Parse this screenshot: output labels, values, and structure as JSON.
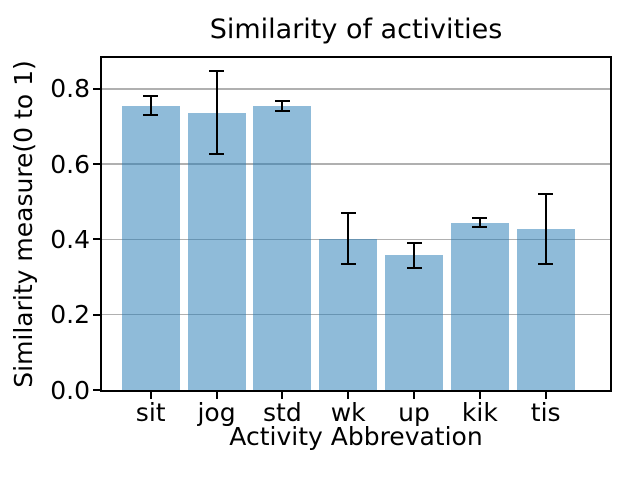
{
  "chart_data": {
    "type": "bar",
    "title": "Similarity of activities",
    "xlabel": "Activity Abbrevation",
    "ylabel": "Similarity measure(0 to 1)",
    "categories": [
      "sit",
      "jog",
      "std",
      "wk",
      "up",
      "kik",
      "tis"
    ],
    "values": [
      0.755,
      0.737,
      0.755,
      0.402,
      0.358,
      0.445,
      0.427
    ],
    "errors": [
      0.025,
      0.11,
      0.013,
      0.068,
      0.033,
      0.013,
      0.093
    ],
    "yticks": [
      0.0,
      0.2,
      0.4,
      0.6,
      0.8
    ],
    "ytick_labels": [
      "0.0",
      "0.2",
      "0.4",
      "0.6",
      "0.8"
    ],
    "ylim": [
      0,
      0.882
    ],
    "grid": true,
    "legend": "none",
    "bar_color": "#1f77b4",
    "bar_alpha": 0.5,
    "bar_color_rendered": "#8fbbd9",
    "error_color": "#000000",
    "grid_color": "#b0b0b0",
    "spine_color": "#000000",
    "background_color": "#ffffff",
    "text_color": "#000000"
  }
}
